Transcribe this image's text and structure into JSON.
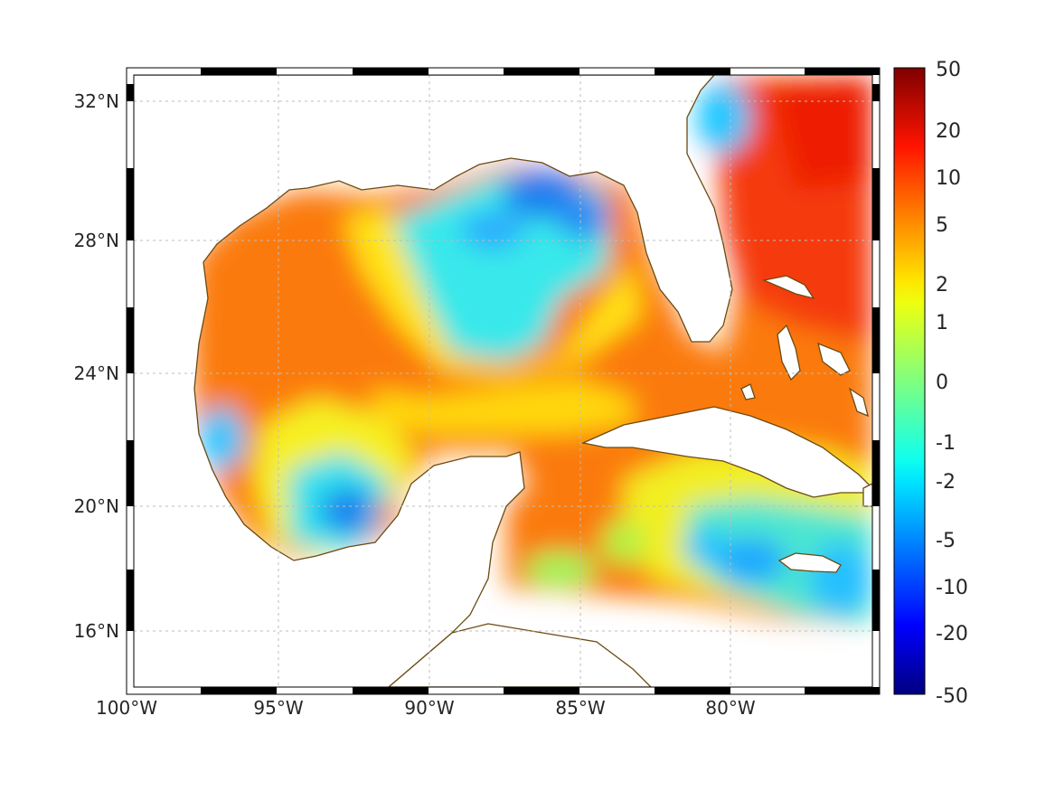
{
  "chart_data": {
    "type": "heatmap",
    "title": "",
    "xlabel": "",
    "ylabel": "",
    "x_range": [
      -100,
      -75
    ],
    "y_range": [
      14.3,
      32.9
    ],
    "x_ticks": [
      "100°W",
      "95°W",
      "90°W",
      "85°W",
      "80°W"
    ],
    "y_ticks": [
      "32°N",
      "28°N",
      "24°N",
      "20°N",
      "16°N"
    ],
    "grid": true,
    "colorbar": {
      "ticks": [
        "50",
        "20",
        "10",
        "5",
        "2",
        "1",
        "0",
        "-1",
        "-2",
        "-5",
        "-10",
        "-20",
        "-50"
      ],
      "range": [
        -50,
        50
      ],
      "scale": "symmetric-log",
      "colormap": "jet",
      "position": "right"
    }
  },
  "colors": {
    "land_coastline": "#6b4a12",
    "grid": "#bdbdbd",
    "frame": "#000000"
  }
}
